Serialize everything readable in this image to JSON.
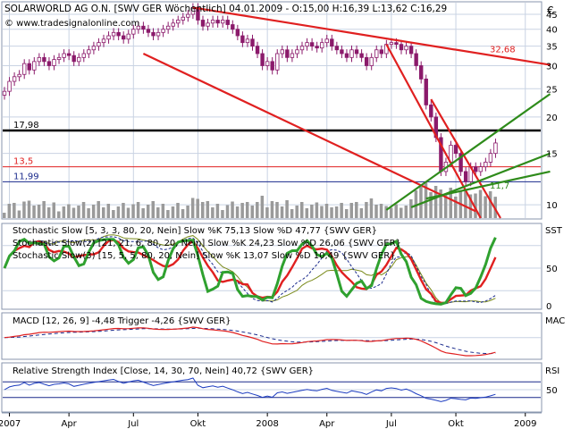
{
  "header": {
    "title": "SOLARWORLD AG O.N. [SWV GER  Wöchentlich] 04.01.2009 - O:15,00 H:16,39 L:13,62 C:16,29",
    "website": "© www.tradesignalonline.com",
    "currency": "€"
  },
  "colors": {
    "grid": "#c9d3e3",
    "frame": "#8896ad",
    "candle": "#8b1a6b",
    "volume": "#9a9a9a",
    "trend_red": "#e02020",
    "trend_green": "#2e8b1a",
    "support": "#000000",
    "stoch_green": "#2fa12f",
    "stoch_red": "#e02020",
    "macd_red": "#e02020",
    "macd_trigger": "#1a2a8c",
    "rsi_blue": "#1c3cc0"
  },
  "x_axis": {
    "labels": [
      {
        "text": "2007",
        "week": 1
      },
      {
        "text": "Apr",
        "week": 13
      },
      {
        "text": "Jul",
        "week": 26
      },
      {
        "text": "Okt",
        "week": 39
      },
      {
        "text": "2008",
        "week": 53
      },
      {
        "text": "Apr",
        "week": 65
      },
      {
        "text": "Jul",
        "week": 78
      },
      {
        "text": "Okt",
        "week": 91
      },
      {
        "text": "2009",
        "week": 105
      }
    ]
  },
  "chart_data": [
    {
      "type": "candlestick",
      "panel": "price",
      "y_scale": "log",
      "ylim": [
        9,
        49
      ],
      "y_ticks": [
        10,
        15,
        20,
        25,
        30,
        35,
        40,
        45
      ],
      "levels": [
        {
          "label": "32,68",
          "value": 32.68,
          "color": "#e02020"
        },
        {
          "label": "17,98",
          "value": 17.98,
          "color": "#000000"
        },
        {
          "label": "13,5",
          "value": 13.5,
          "color": "#e02020"
        },
        {
          "label": "11,99",
          "value": 11.99,
          "color": "#1a2a8c"
        },
        {
          "label": "11,7",
          "value": 11.7,
          "color": "#2e8b1a"
        }
      ],
      "weekly_close": [
        24.5,
        26.5,
        27.5,
        28,
        30.5,
        29,
        31,
        32,
        31,
        30,
        31.5,
        32,
        33,
        32.5,
        31,
        32,
        33,
        34,
        35,
        36,
        37,
        38,
        39,
        38,
        37,
        38.5,
        40,
        41,
        40,
        39,
        38,
        39,
        40,
        41,
        42,
        43,
        44,
        45,
        47.5,
        43,
        41,
        42,
        43,
        42,
        43,
        41.5,
        40,
        38,
        36,
        37,
        35,
        33,
        30,
        31,
        29,
        33,
        34,
        32,
        33,
        34,
        35,
        36,
        35,
        34.5,
        36,
        37,
        35,
        34,
        33,
        32,
        34,
        33,
        32,
        30,
        32,
        34,
        33,
        35.5,
        36,
        35.5,
        34,
        35,
        33,
        30,
        27,
        22,
        20,
        17,
        13,
        14,
        16,
        15,
        13,
        12,
        13.5,
        13,
        13.5,
        14,
        15,
        16.29
      ],
      "trendlines": [
        {
          "color": "#e02020",
          "from": [
            38,
            47.5
          ],
          "to": [
            110,
            30.2
          ]
        },
        {
          "color": "#e02020",
          "from": [
            28,
            33
          ],
          "to": [
            95,
            9.5
          ]
        },
        {
          "color": "#e02020",
          "from": [
            77,
            35.5
          ],
          "to": [
            96,
            9
          ]
        },
        {
          "color": "#e02020",
          "from": [
            86,
            23
          ],
          "to": [
            100,
            9
          ]
        },
        {
          "color": "#2e8b1a",
          "from": [
            77,
            9.6
          ],
          "to": [
            110,
            24
          ]
        },
        {
          "color": "#2e8b1a",
          "from": [
            82,
            9.8
          ],
          "to": [
            110,
            15
          ]
        },
        {
          "color": "#2e8b1a",
          "from": [
            85,
            10.5
          ],
          "to": [
            110,
            13
          ]
        }
      ]
    },
    {
      "type": "line",
      "panel": "stochastic",
      "ylim": [
        0,
        100
      ],
      "y_ticks": [
        0,
        50
      ],
      "axis_label": "SST",
      "legends": [
        "Stochastic Slow [5, 3, 3, 80, 20, Nein] Slow %K 75,13 Slow %D 47,77 {SWV GER}",
        "Stochastic Slow(2) [21, 21, 6, 80, 20, Nein] Slow %K 24,23 Slow %D 26,06 {SWV GER}",
        "Stochastic Slow(3) [15, 5, 5, 80, 20, Nein] Slow %K 13,07 Slow %D 10,49 {SWV GER}"
      ],
      "overbought": 80,
      "oversold": 20
    },
    {
      "type": "line",
      "panel": "macd",
      "axis_label": "MAC",
      "legend": "MACD [12, 26, 9] -4,48 Trigger -4,26 {SWV GER}"
    },
    {
      "type": "line",
      "panel": "rsi",
      "ylim": [
        0,
        100
      ],
      "y_ticks": [
        50
      ],
      "axis_label": "RSI",
      "legend": "Relative Strength Index [Close, 14, 30, 70, Nein] 40,72 {SWV GER}"
    }
  ]
}
